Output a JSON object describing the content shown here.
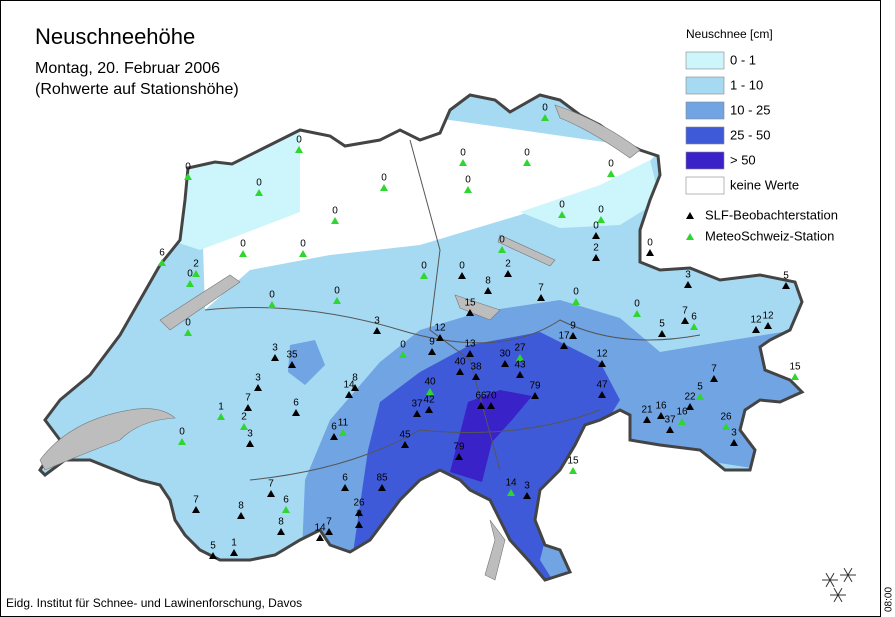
{
  "header": {
    "title": "Neuschneehöhe",
    "subtitle_lines": [
      "Montag, 20. Februar 2006",
      "(Rohwerte auf Stationshöhe)"
    ]
  },
  "legend": {
    "title": "Neuschnee [cm]",
    "classes": [
      {
        "label": "0 - 1",
        "color": "#cdf6fc"
      },
      {
        "label": "1 - 10",
        "color": "#a6daf2"
      },
      {
        "label": "10 - 25",
        "color": "#70a4e3"
      },
      {
        "label": "25 - 50",
        "color": "#3f5ad8"
      },
      {
        "label": "> 50",
        "color": "#3a22c9"
      },
      {
        "label": "keine Werte",
        "color": "#ffffff"
      }
    ],
    "station_types": [
      {
        "label": "SLF-Beobachterstation",
        "color": "#000000"
      },
      {
        "label": "MeteoSchweiz-Station",
        "color": "#2ed62e"
      }
    ]
  },
  "stations": [
    0,
    0,
    0,
    0,
    0,
    0,
    0,
    0,
    0,
    0,
    0,
    0,
    0,
    0,
    6,
    2,
    0,
    0,
    0,
    0,
    2,
    0,
    0,
    2,
    8,
    0,
    0,
    7,
    0,
    0,
    3,
    5,
    0,
    15,
    3,
    12,
    9,
    5,
    7,
    6,
    12,
    12,
    17,
    9,
    13,
    0,
    3,
    35,
    30,
    27,
    12,
    40,
    38,
    43,
    7,
    15,
    3,
    14,
    8,
    40,
    79,
    47,
    5,
    22,
    7,
    6,
    37,
    42,
    66,
    70,
    1,
    2,
    21,
    16,
    37,
    16,
    26,
    3,
    6,
    11,
    0,
    45,
    3,
    79,
    15,
    6,
    85,
    7,
    14,
    3,
    7,
    6,
    26,
    8,
    7,
    14,
    7,
    8,
    5,
    1
  ],
  "footer": "Eidg. Institut für Schnee- und Lawinenforschung, Davos",
  "timestamp": "08:00"
}
